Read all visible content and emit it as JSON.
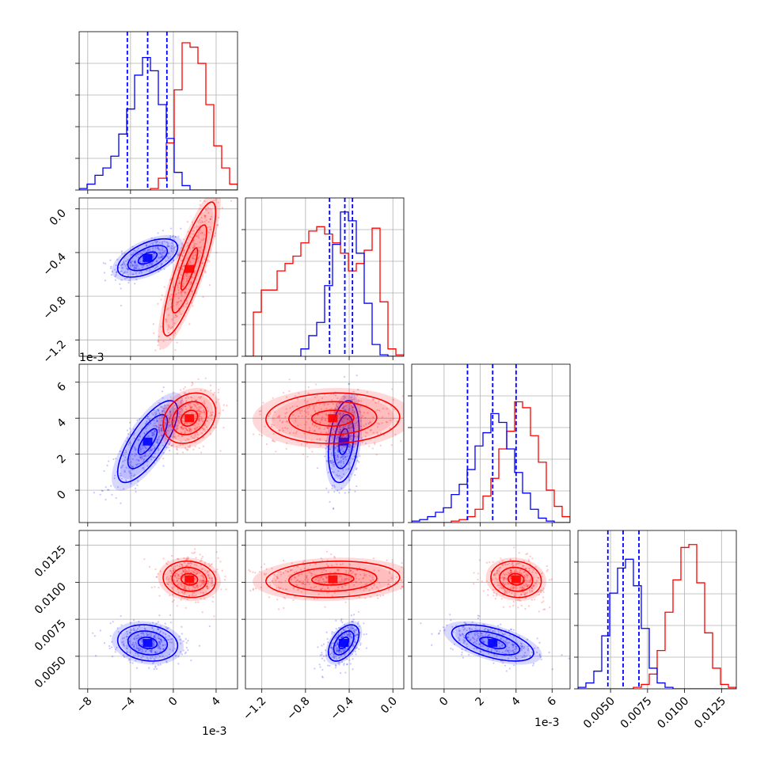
{
  "chart_data": {
    "type": "corner",
    "colors": {
      "series_a": "#0000ff",
      "series_b": "#ff0000"
    },
    "series": [
      {
        "color": "#0000ff"
      },
      {
        "color": "#ff0000"
      }
    ],
    "params": [
      {
        "range": [
          -8.8,
          6.0
        ],
        "offset_label": "1e-3",
        "ticks": [
          -8,
          -4,
          0,
          4
        ],
        "tick_labels": [
          "−8",
          "−4",
          "0",
          "4"
        ]
      },
      {
        "range": [
          -1.35,
          0.1
        ],
        "offset_label": "1e-3",
        "ticks": [
          -1.2,
          -0.8,
          -0.4,
          0.0
        ],
        "tick_labels": [
          "−1.2",
          "−0.8",
          "−0.4",
          "0.0"
        ]
      },
      {
        "range": [
          -1.8,
          7.0
        ],
        "offset_label": "1e-3",
        "ticks": [
          0,
          2,
          4,
          6
        ],
        "tick_labels": [
          "0",
          "2",
          "4",
          "6"
        ]
      },
      {
        "range": [
          0.0028,
          0.0135
        ],
        "offset_label": "",
        "ticks": [
          0.005,
          0.0075,
          0.01,
          0.0125
        ],
        "tick_labels": [
          "0.0050",
          "0.0075",
          "0.0100",
          "0.0125"
        ]
      }
    ],
    "histograms": [
      {
        "bins": [
          -8.8,
          -8.06,
          -7.32,
          -6.58,
          -5.84,
          -5.1,
          -4.36,
          -3.62,
          -2.88,
          -2.14,
          -1.4,
          -0.66,
          0.08,
          0.82,
          1.56,
          2.3,
          3.04,
          3.78,
          4.52,
          5.26,
          6.0
        ],
        "series_a": [
          1,
          4,
          10,
          15,
          23,
          38,
          55,
          78,
          90,
          81,
          58,
          35,
          12,
          3,
          0,
          0,
          0,
          0,
          0,
          0
        ],
        "series_b": [
          0,
          0,
          0,
          0,
          0,
          0,
          0,
          0,
          0,
          1,
          8,
          32,
          68,
          100,
          97,
          86,
          58,
          30,
          15,
          4
        ],
        "quantiles_a": [
          -4.3,
          -2.4,
          -0.6
        ]
      },
      {
        "bins": [
          -1.35,
          -1.2775,
          -1.205,
          -1.1325,
          -1.06,
          -0.9875,
          -0.915,
          -0.8425,
          -0.77,
          -0.6975,
          -0.625,
          -0.5525,
          -0.48,
          -0.4075,
          -0.335,
          -0.2625,
          -0.19,
          -0.1175,
          -0.045,
          0.0275,
          0.1
        ],
        "series_a": [
          0,
          0,
          0,
          0,
          0,
          0,
          0,
          5,
          14,
          23,
          48,
          76,
          98,
          92,
          70,
          36,
          8,
          1,
          0,
          0
        ],
        "series_b": [
          0,
          30,
          45,
          45,
          58,
          63,
          68,
          77,
          85,
          88,
          83,
          77,
          70,
          58,
          63,
          72,
          87,
          37,
          5,
          1
        ],
        "quantiles_a": [
          -0.58,
          -0.44,
          -0.37
        ]
      },
      {
        "bins": [
          -1.8,
          -1.36,
          -0.92,
          -0.48,
          -0.04,
          0.4,
          0.84,
          1.28,
          1.72,
          2.16,
          2.6,
          3.04,
          3.48,
          3.92,
          4.36,
          4.8,
          5.24,
          5.68,
          6.12,
          6.56,
          7.0
        ],
        "series_a": [
          1,
          2,
          4,
          7,
          10,
          19,
          26,
          36,
          52,
          61,
          74,
          68,
          50,
          34,
          20,
          9,
          3,
          1,
          0,
          0
        ],
        "series_b": [
          0,
          0,
          0,
          0,
          0,
          1,
          2,
          4,
          9,
          18,
          30,
          50,
          62,
          82,
          78,
          59,
          41,
          22,
          11,
          4
        ],
        "quantiles_a": [
          1.3,
          2.7,
          4.0
        ]
      },
      {
        "bins": [
          0.0028,
          0.003335,
          0.00387,
          0.004405,
          0.00494,
          0.005475,
          0.00601,
          0.006545,
          0.00708,
          0.007615,
          0.00815,
          0.008685,
          0.00922,
          0.009755,
          0.01029,
          0.010825,
          0.01136,
          0.011895,
          0.01243,
          0.012965,
          0.0135
        ],
        "series_a": [
          1,
          4,
          12,
          36,
          65,
          82,
          88,
          70,
          41,
          14,
          4,
          1,
          0,
          0,
          0,
          0,
          0,
          0,
          0,
          0
        ],
        "series_b": [
          0,
          0,
          0,
          0,
          0,
          0,
          0,
          1,
          3,
          10,
          26,
          52,
          74,
          96,
          98,
          72,
          38,
          14,
          3,
          1
        ],
        "quantiles_a": [
          0.00482,
          0.00585,
          0.00692
        ]
      }
    ],
    "scatter_panels": [
      {
        "row": 1,
        "col": 0,
        "series_a": {
          "mean": [
            -2.4,
            -0.45
          ],
          "sd": [
            1.6,
            0.1
          ],
          "rho": 0.55
        },
        "series_b": {
          "mean": [
            1.5,
            -0.55
          ],
          "sd": [
            1.4,
            0.35
          ],
          "rho": 0.85
        }
      },
      {
        "row": 2,
        "col": 0,
        "series_a": {
          "mean": [
            -2.4,
            2.7
          ],
          "sd": [
            1.6,
            1.3
          ],
          "rho": 0.75
        },
        "series_b": {
          "mean": [
            1.5,
            4.0
          ],
          "sd": [
            1.4,
            0.8
          ],
          "rho": 0.25
        }
      },
      {
        "row": 2,
        "col": 1,
        "series_a": {
          "mean": [
            -0.45,
            2.7
          ],
          "sd": [
            0.08,
            1.3
          ],
          "rho": 0.3
        },
        "series_b": {
          "mean": [
            -0.55,
            4.0
          ],
          "sd": [
            0.35,
            0.8
          ],
          "rho": 0.05
        }
      },
      {
        "row": 3,
        "col": 0,
        "series_a": {
          "mean": [
            -2.4,
            0.0059
          ],
          "sd": [
            1.6,
            0.0007
          ],
          "rho": -0.15
        },
        "series_b": {
          "mean": [
            1.5,
            0.0102
          ],
          "sd": [
            1.4,
            0.0007
          ],
          "rho": -0.1
        }
      },
      {
        "row": 3,
        "col": 1,
        "series_a": {
          "mean": [
            -0.45,
            0.0059
          ],
          "sd": [
            0.08,
            0.0007
          ],
          "rho": 0.5
        },
        "series_b": {
          "mean": [
            -0.55,
            0.0102
          ],
          "sd": [
            0.35,
            0.0007
          ],
          "rho": 0.1
        }
      },
      {
        "row": 3,
        "col": 2,
        "series_a": {
          "mean": [
            2.7,
            0.0059
          ],
          "sd": [
            1.3,
            0.0007
          ],
          "rho": -0.55
        },
        "series_b": {
          "mean": [
            4.0,
            0.0102
          ],
          "sd": [
            0.8,
            0.0007
          ],
          "rho": -0.1
        }
      }
    ],
    "title": "",
    "grid": true
  }
}
